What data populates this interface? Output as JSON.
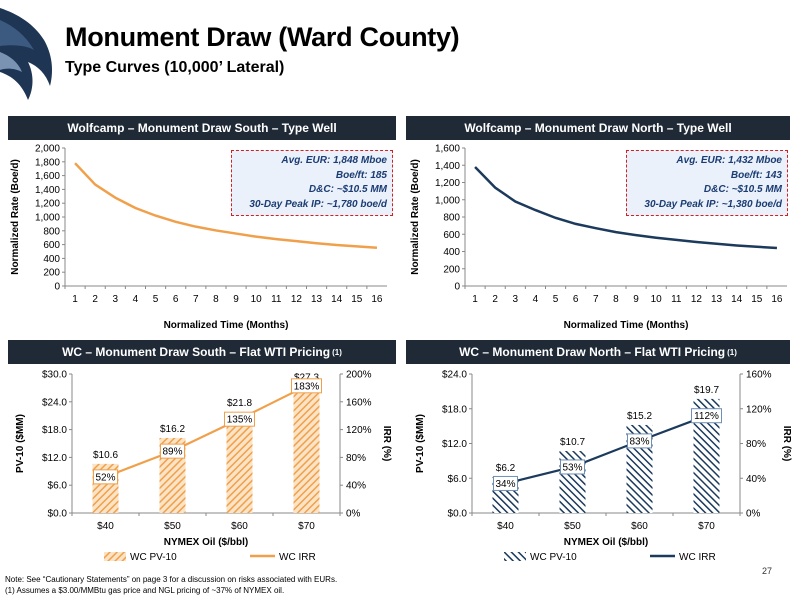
{
  "header": {
    "title": "Monument Draw (Ward County)",
    "subtitle": "Type Curves (10,000’ Lateral)"
  },
  "panels": {
    "south_type_well": {
      "header": "Wolfcamp – Monument Draw South – Type Well",
      "callout": [
        "Avg. EUR: 1,848 Mboe",
        "Boe/ft: 185",
        "D&C: ~$10.5 MM",
        "30-Day Peak IP: ~1,780 boe/d"
      ]
    },
    "north_type_well": {
      "header": "Wolfcamp – Monument Draw North – Type Well",
      "callout": [
        "Avg. EUR: 1,432 Mboe",
        "Boe/ft: 143",
        "D&C: ~$10.5 MM",
        "30-Day Peak IP: ~1,380 boe/d"
      ]
    },
    "south_pricing": {
      "header": "WC – Monument Draw South – Flat WTI Pricing",
      "sup": "(1)"
    },
    "north_pricing": {
      "header": "WC – Monument Draw North – Flat WTI Pricing",
      "sup": "(1)"
    }
  },
  "chart_data": [
    {
      "type": "line",
      "xlabel": "Normalized Time (Months)",
      "ylabel": "Normalized Rate (Boe/d)",
      "x": [
        1,
        2,
        3,
        4,
        5,
        6,
        7,
        8,
        9,
        10,
        11,
        12,
        13,
        14,
        15,
        16
      ],
      "ylim": [
        0,
        2000
      ],
      "yticks": [
        0,
        200,
        400,
        600,
        800,
        1000,
        1200,
        1400,
        1600,
        1800,
        2000
      ],
      "ytick_labels": [
        "0",
        "200",
        "400",
        "600",
        "800",
        "1,000",
        "1,200",
        "1,400",
        "1,600",
        "1,800",
        "2,000"
      ],
      "series": [
        {
          "values": [
            1780,
            1470,
            1280,
            1130,
            1020,
            930,
            860,
            805,
            760,
            715,
            680,
            650,
            620,
            595,
            575,
            555
          ]
        }
      ],
      "colors": {
        "line": "#f0a04b"
      }
    },
    {
      "type": "line",
      "xlabel": "Normalized Time (Months)",
      "ylabel": "Normalized Rate (Boe/d)",
      "x": [
        1,
        2,
        3,
        4,
        5,
        6,
        7,
        8,
        9,
        10,
        11,
        12,
        13,
        14,
        15,
        16
      ],
      "ylim": [
        0,
        1600
      ],
      "yticks": [
        0,
        200,
        400,
        600,
        800,
        1000,
        1200,
        1400,
        1600
      ],
      "ytick_labels": [
        "0",
        "200",
        "400",
        "600",
        "800",
        "1,000",
        "1,200",
        "1,400",
        "1,600"
      ],
      "series": [
        {
          "values": [
            1380,
            1140,
            980,
            880,
            790,
            720,
            670,
            625,
            590,
            560,
            535,
            510,
            490,
            470,
            455,
            440
          ]
        }
      ],
      "colors": {
        "line": "#1b3a5c"
      }
    },
    {
      "type": "bar",
      "xlabel": "NYMEX Oil ($/bbl)",
      "ylabel": "PV-10 ($MM)",
      "ylabel_right": "IRR (%)",
      "categories": [
        "$40",
        "$50",
        "$60",
        "$70"
      ],
      "ylim": [
        0,
        30
      ],
      "yticks": [
        0,
        6,
        12,
        18,
        24,
        30
      ],
      "ytick_labels": [
        "$0.0",
        "$6.0",
        "$12.0",
        "$18.0",
        "$24.0",
        "$30.0"
      ],
      "ylim_right": [
        0,
        200
      ],
      "yticks_right": [
        0,
        40,
        80,
        120,
        160,
        200
      ],
      "ytick_labels_right": [
        "0%",
        "40%",
        "80%",
        "120%",
        "160%",
        "200%"
      ],
      "series": [
        {
          "name": "WC PV-10",
          "type": "bar",
          "values": [
            10.6,
            16.2,
            21.8,
            27.3
          ],
          "labels": [
            "$10.6",
            "$16.2",
            "$21.8",
            "$27.3"
          ]
        },
        {
          "name": "WC IRR",
          "type": "line",
          "axis": "right",
          "values": [
            52,
            89,
            135,
            183
          ],
          "labels": [
            "52%",
            "89%",
            "135%",
            "183%"
          ]
        }
      ],
      "colors": {
        "bar": "#f0a04b",
        "line": "#f0a04b"
      }
    },
    {
      "type": "bar",
      "xlabel": "NYMEX Oil ($/bbl)",
      "ylabel": "PV-10 ($MM)",
      "ylabel_right": "IRR (%)",
      "categories": [
        "$40",
        "$50",
        "$60",
        "$70"
      ],
      "ylim": [
        0,
        24
      ],
      "yticks": [
        0,
        6,
        12,
        18,
        24
      ],
      "ytick_labels": [
        "$0.0",
        "$6.0",
        "$12.0",
        "$18.0",
        "$24.0"
      ],
      "ylim_right": [
        0,
        160
      ],
      "yticks_right": [
        0,
        40,
        80,
        120,
        160
      ],
      "ytick_labels_right": [
        "0%",
        "40%",
        "80%",
        "120%",
        "160%"
      ],
      "series": [
        {
          "name": "WC PV-10",
          "type": "bar",
          "values": [
            6.2,
            10.7,
            15.2,
            19.7
          ],
          "labels": [
            "$6.2",
            "$10.7",
            "$15.2",
            "$19.7"
          ]
        },
        {
          "name": "WC IRR",
          "type": "line",
          "axis": "right",
          "values": [
            34,
            53,
            83,
            112
          ],
          "labels": [
            "34%",
            "53%",
            "83%",
            "112%"
          ]
        }
      ],
      "colors": {
        "bar": "#1b3a5c",
        "line": "#1b3a5c"
      }
    }
  ],
  "footnotes": {
    "note": "Note: See “Cautionary Statements” on page 3 for a discussion on risks associated with EURs.",
    "fn1": "(1)    Assumes a $3.00/MMBtu gas price and NGL pricing of ~37% of NYMEX oil."
  },
  "page_number": "27"
}
